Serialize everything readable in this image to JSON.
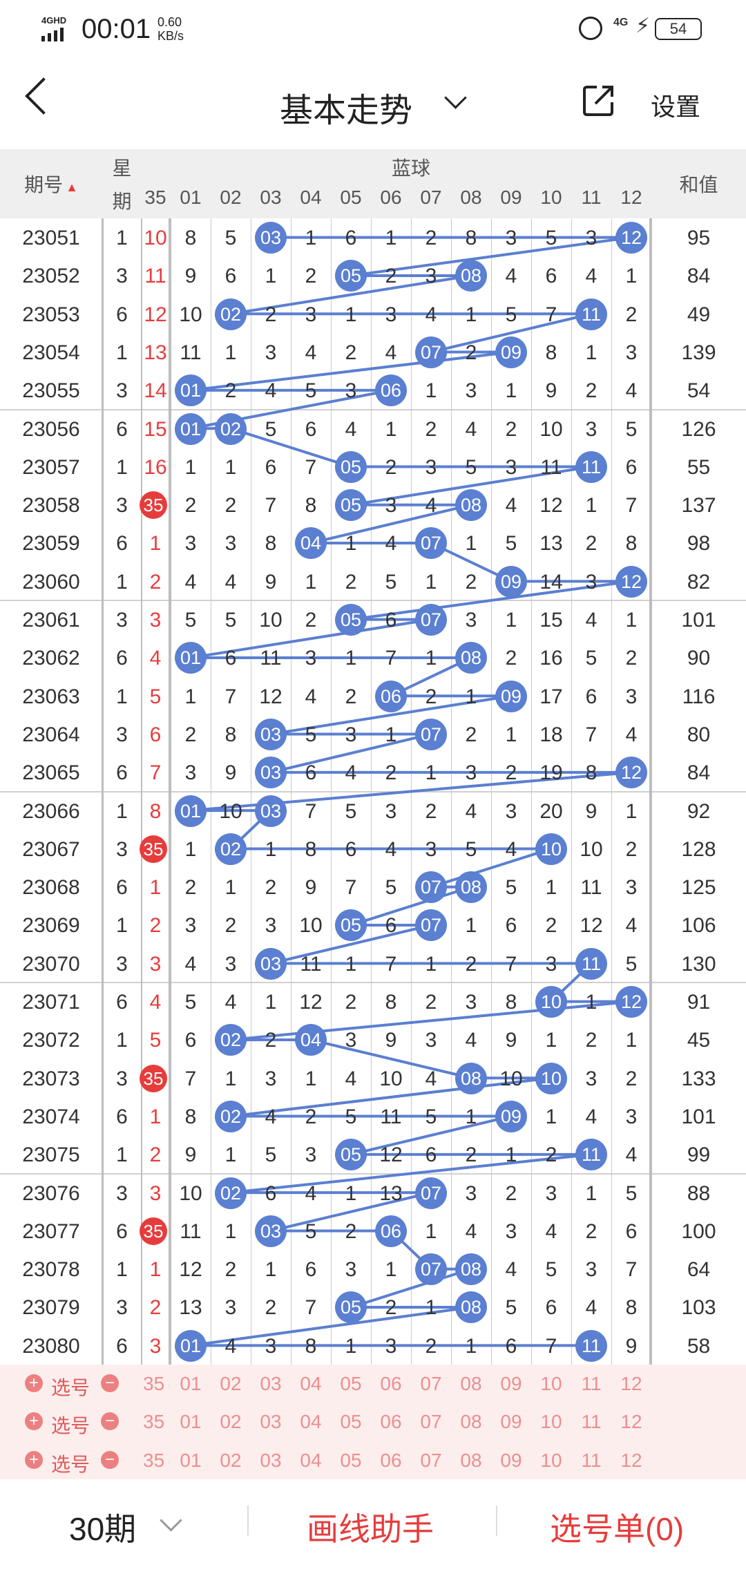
{
  "status_bar": {
    "network": "4GHD",
    "time": "00:01",
    "speed_value": "0.60",
    "speed_unit": "KB/s",
    "net2": "4G",
    "battery": "54"
  },
  "header": {
    "title": "基本走势",
    "settings_label": "设置"
  },
  "table": {
    "col_issue": "期号",
    "col_week_top": "星",
    "col_week_bottom": "期",
    "col_partial": "35",
    "col_blue": "蓝球",
    "col_sum": "和值",
    "blue_numbers": [
      "01",
      "02",
      "03",
      "04",
      "05",
      "06",
      "07",
      "08",
      "09",
      "10",
      "11",
      "12"
    ],
    "rows": [
      {
        "issue": "23051",
        "week": "1",
        "red": "10",
        "red_hit": false,
        "cells": [
          "8",
          "5",
          "03",
          "1",
          "6",
          "1",
          "2",
          "8",
          "3",
          "5",
          "3",
          "12"
        ],
        "hits": [
          3,
          12
        ],
        "sum": "95"
      },
      {
        "issue": "23052",
        "week": "3",
        "red": "11",
        "red_hit": false,
        "cells": [
          "9",
          "6",
          "1",
          "2",
          "05",
          "2",
          "3",
          "08",
          "4",
          "6",
          "4",
          "1"
        ],
        "hits": [
          5,
          8
        ],
        "sum": "84"
      },
      {
        "issue": "23053",
        "week": "6",
        "red": "12",
        "red_hit": false,
        "cells": [
          "10",
          "02",
          "2",
          "3",
          "1",
          "3",
          "4",
          "1",
          "5",
          "7",
          "11",
          "2"
        ],
        "hits": [
          2,
          11
        ],
        "sum": "49"
      },
      {
        "issue": "23054",
        "week": "1",
        "red": "13",
        "red_hit": false,
        "cells": [
          "11",
          "1",
          "3",
          "4",
          "2",
          "4",
          "07",
          "2",
          "09",
          "8",
          "1",
          "3"
        ],
        "hits": [
          7,
          9
        ],
        "sum": "139"
      },
      {
        "issue": "23055",
        "week": "3",
        "red": "14",
        "red_hit": false,
        "cells": [
          "01",
          "2",
          "4",
          "5",
          "3",
          "06",
          "1",
          "3",
          "1",
          "9",
          "2",
          "4"
        ],
        "hits": [
          1,
          6
        ],
        "sum": "54"
      },
      {
        "issue": "23056",
        "week": "6",
        "red": "15",
        "red_hit": false,
        "cells": [
          "01",
          "02",
          "5",
          "6",
          "4",
          "1",
          "2",
          "4",
          "2",
          "10",
          "3",
          "5"
        ],
        "hits": [
          1,
          2
        ],
        "sum": "126"
      },
      {
        "issue": "23057",
        "week": "1",
        "red": "16",
        "red_hit": false,
        "cells": [
          "1",
          "1",
          "6",
          "7",
          "05",
          "2",
          "3",
          "5",
          "3",
          "11",
          "11",
          "6"
        ],
        "hits": [
          5,
          11
        ],
        "sum": "55"
      },
      {
        "issue": "23058",
        "week": "3",
        "red": "35",
        "red_hit": true,
        "cells": [
          "2",
          "2",
          "7",
          "8",
          "05",
          "3",
          "4",
          "08",
          "4",
          "12",
          "1",
          "7"
        ],
        "hits": [
          5,
          8
        ],
        "sum": "137"
      },
      {
        "issue": "23059",
        "week": "6",
        "red": "1",
        "red_hit": false,
        "cells": [
          "3",
          "3",
          "8",
          "04",
          "1",
          "4",
          "07",
          "1",
          "5",
          "13",
          "2",
          "8"
        ],
        "hits": [
          4,
          7
        ],
        "sum": "98"
      },
      {
        "issue": "23060",
        "week": "1",
        "red": "2",
        "red_hit": false,
        "cells": [
          "4",
          "4",
          "9",
          "1",
          "2",
          "5",
          "1",
          "2",
          "09",
          "14",
          "3",
          "12"
        ],
        "hits": [
          9,
          12
        ],
        "sum": "82"
      },
      {
        "issue": "23061",
        "week": "3",
        "red": "3",
        "red_hit": false,
        "cells": [
          "5",
          "5",
          "10",
          "2",
          "05",
          "6",
          "07",
          "3",
          "1",
          "15",
          "4",
          "1"
        ],
        "hits": [
          5,
          7
        ],
        "sum": "101"
      },
      {
        "issue": "23062",
        "week": "6",
        "red": "4",
        "red_hit": false,
        "cells": [
          "01",
          "6",
          "11",
          "3",
          "1",
          "7",
          "1",
          "08",
          "2",
          "16",
          "5",
          "2"
        ],
        "hits": [
          1,
          8
        ],
        "sum": "90"
      },
      {
        "issue": "23063",
        "week": "1",
        "red": "5",
        "red_hit": false,
        "cells": [
          "1",
          "7",
          "12",
          "4",
          "2",
          "06",
          "2",
          "1",
          "09",
          "17",
          "6",
          "3"
        ],
        "hits": [
          6,
          9
        ],
        "sum": "116"
      },
      {
        "issue": "23064",
        "week": "3",
        "red": "6",
        "red_hit": false,
        "cells": [
          "2",
          "8",
          "03",
          "5",
          "3",
          "1",
          "07",
          "2",
          "1",
          "18",
          "7",
          "4"
        ],
        "hits": [
          3,
          7
        ],
        "sum": "80"
      },
      {
        "issue": "23065",
        "week": "6",
        "red": "7",
        "red_hit": false,
        "cells": [
          "3",
          "9",
          "03",
          "6",
          "4",
          "2",
          "1",
          "3",
          "2",
          "19",
          "8",
          "12"
        ],
        "hits": [
          3,
          12
        ],
        "sum": "84"
      },
      {
        "issue": "23066",
        "week": "1",
        "red": "8",
        "red_hit": false,
        "cells": [
          "01",
          "10",
          "03",
          "7",
          "5",
          "3",
          "2",
          "4",
          "3",
          "20",
          "9",
          "1"
        ],
        "hits": [
          1,
          3
        ],
        "sum": "92"
      },
      {
        "issue": "23067",
        "week": "3",
        "red": "35",
        "red_hit": true,
        "cells": [
          "1",
          "02",
          "1",
          "8",
          "6",
          "4",
          "3",
          "5",
          "4",
          "10",
          "10",
          "2"
        ],
        "hits": [
          2,
          10
        ],
        "sum": "128"
      },
      {
        "issue": "23068",
        "week": "6",
        "red": "1",
        "red_hit": false,
        "cells": [
          "2",
          "1",
          "2",
          "9",
          "7",
          "5",
          "07",
          "08",
          "5",
          "1",
          "11",
          "3"
        ],
        "hits": [
          7,
          8
        ],
        "sum": "125"
      },
      {
        "issue": "23069",
        "week": "1",
        "red": "2",
        "red_hit": false,
        "cells": [
          "3",
          "2",
          "3",
          "10",
          "05",
          "6",
          "07",
          "1",
          "6",
          "2",
          "12",
          "4"
        ],
        "hits": [
          5,
          7
        ],
        "sum": "106"
      },
      {
        "issue": "23070",
        "week": "3",
        "red": "3",
        "red_hit": false,
        "cells": [
          "4",
          "3",
          "03",
          "11",
          "1",
          "7",
          "1",
          "2",
          "7",
          "3",
          "11",
          "5"
        ],
        "hits": [
          3,
          11
        ],
        "sum": "130"
      },
      {
        "issue": "23071",
        "week": "6",
        "red": "4",
        "red_hit": false,
        "cells": [
          "5",
          "4",
          "1",
          "12",
          "2",
          "8",
          "2",
          "3",
          "8",
          "10",
          "1",
          "12"
        ],
        "hits": [
          10,
          12
        ],
        "sum": "91"
      },
      {
        "issue": "23072",
        "week": "1",
        "red": "5",
        "red_hit": false,
        "cells": [
          "6",
          "02",
          "2",
          "04",
          "3",
          "9",
          "3",
          "4",
          "9",
          "1",
          "2",
          "1"
        ],
        "hits": [
          2,
          4
        ],
        "sum": "45"
      },
      {
        "issue": "23073",
        "week": "3",
        "red": "35",
        "red_hit": true,
        "cells": [
          "7",
          "1",
          "3",
          "1",
          "4",
          "10",
          "4",
          "08",
          "10",
          "10",
          "3",
          "2"
        ],
        "hits": [
          8,
          10
        ],
        "sum": "133"
      },
      {
        "issue": "23074",
        "week": "6",
        "red": "1",
        "red_hit": false,
        "cells": [
          "8",
          "02",
          "4",
          "2",
          "5",
          "11",
          "5",
          "1",
          "09",
          "1",
          "4",
          "3"
        ],
        "hits": [
          2,
          9
        ],
        "sum": "101"
      },
      {
        "issue": "23075",
        "week": "1",
        "red": "2",
        "red_hit": false,
        "cells": [
          "9",
          "1",
          "5",
          "3",
          "05",
          "12",
          "6",
          "2",
          "1",
          "2",
          "11",
          "4"
        ],
        "hits": [
          5,
          11
        ],
        "sum": "99"
      },
      {
        "issue": "23076",
        "week": "3",
        "red": "3",
        "red_hit": false,
        "cells": [
          "10",
          "02",
          "6",
          "4",
          "1",
          "13",
          "07",
          "3",
          "2",
          "3",
          "1",
          "5"
        ],
        "hits": [
          2,
          7
        ],
        "sum": "88"
      },
      {
        "issue": "23077",
        "week": "6",
        "red": "35",
        "red_hit": true,
        "cells": [
          "11",
          "1",
          "03",
          "5",
          "2",
          "06",
          "1",
          "4",
          "3",
          "4",
          "2",
          "6"
        ],
        "hits": [
          3,
          6
        ],
        "sum": "100"
      },
      {
        "issue": "23078",
        "week": "1",
        "red": "1",
        "red_hit": false,
        "cells": [
          "12",
          "2",
          "1",
          "6",
          "3",
          "1",
          "07",
          "08",
          "4",
          "5",
          "3",
          "7"
        ],
        "hits": [
          7,
          8
        ],
        "sum": "64"
      },
      {
        "issue": "23079",
        "week": "3",
        "red": "2",
        "red_hit": false,
        "cells": [
          "13",
          "3",
          "2",
          "7",
          "05",
          "2",
          "1",
          "08",
          "5",
          "6",
          "4",
          "8"
        ],
        "hits": [
          5,
          8
        ],
        "sum": "103"
      },
      {
        "issue": "23080",
        "week": "6",
        "red": "3",
        "red_hit": false,
        "cells": [
          "01",
          "4",
          "3",
          "8",
          "1",
          "3",
          "2",
          "1",
          "6",
          "7",
          "11",
          "9"
        ],
        "hits": [
          1,
          11
        ],
        "sum": "58"
      }
    ],
    "select_rows": [
      {
        "label": "选号",
        "partial": "35"
      },
      {
        "label": "选号",
        "partial": "35"
      },
      {
        "label": "选号",
        "partial": "35"
      }
    ]
  },
  "footer": {
    "period_label": "30期",
    "draw_helper_label": "画线助手",
    "pick_list_label": "选号单(0)"
  },
  "colors": {
    "ball": "#5b7fd1",
    "red": "#e73c3c",
    "header_bg": "#efefef",
    "select_bg": "#fdeeee"
  }
}
